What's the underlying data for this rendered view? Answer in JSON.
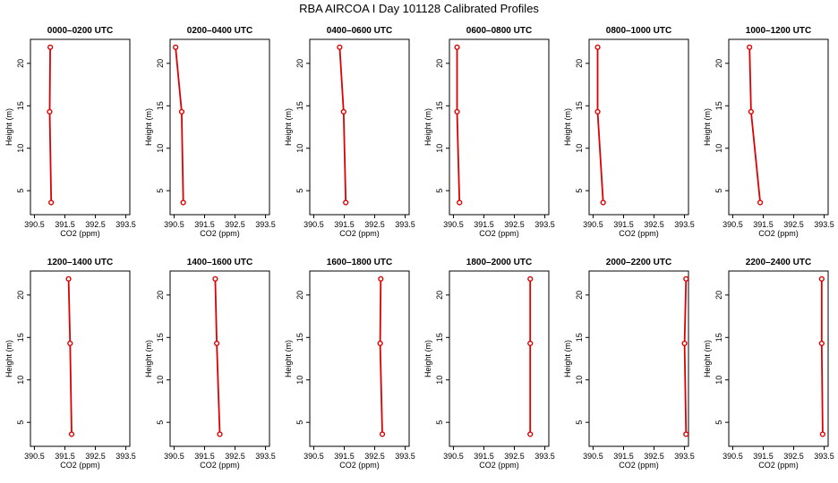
{
  "page": {
    "title": "RBA AIRCOA I  Day 101128  Calibrated Profiles"
  },
  "colors": {
    "profile": "#dd0000",
    "axis": "#000000",
    "background": "#ffffff"
  },
  "chart_data": [
    {
      "type": "line",
      "title": "0000–0200 UTC",
      "xlabel": "CO2 (ppm)",
      "ylabel": "Height (m)",
      "xlim": [
        390.5,
        393.5
      ],
      "ylim": [
        3,
        22
      ],
      "xticks": [
        "390.5",
        "391.5",
        "392.5",
        "393.5"
      ],
      "yticks": [
        "5",
        "10",
        "15",
        "20"
      ],
      "series": [
        {
          "x": [
            391.02,
            391.0,
            391.05
          ],
          "y": [
            21.9,
            14.3,
            3.6
          ]
        }
      ]
    },
    {
      "type": "line",
      "title": "0200–0400 UTC",
      "xlabel": "CO2 (ppm)",
      "ylabel": "Height (m)",
      "xlim": [
        390.5,
        393.5
      ],
      "ylim": [
        3,
        22
      ],
      "xticks": [
        "390.5",
        "391.5",
        "392.5",
        "393.5"
      ],
      "yticks": [
        "5",
        "10",
        "15",
        "20"
      ],
      "series": [
        {
          "x": [
            390.55,
            390.75,
            390.8
          ],
          "y": [
            21.9,
            14.3,
            3.6
          ]
        }
      ]
    },
    {
      "type": "line",
      "title": "0400–0600 UTC",
      "xlabel": "CO2 (ppm)",
      "ylabel": "Height (m)",
      "xlim": [
        390.5,
        393.5
      ],
      "ylim": [
        3,
        22
      ],
      "xticks": [
        "390.5",
        "391.5",
        "392.5",
        "393.5"
      ],
      "yticks": [
        "5",
        "10",
        "15",
        "20"
      ],
      "series": [
        {
          "x": [
            391.35,
            391.48,
            391.55
          ],
          "y": [
            21.9,
            14.3,
            3.6
          ]
        }
      ]
    },
    {
      "type": "line",
      "title": "0600–0800 UTC",
      "xlabel": "CO2 (ppm)",
      "ylabel": "Height (m)",
      "xlim": [
        390.5,
        393.5
      ],
      "ylim": [
        3,
        22
      ],
      "xticks": [
        "390.5",
        "391.5",
        "392.5",
        "393.5"
      ],
      "yticks": [
        "5",
        "10",
        "15",
        "20"
      ],
      "series": [
        {
          "x": [
            390.62,
            390.62,
            390.7
          ],
          "y": [
            21.9,
            14.3,
            3.6
          ]
        }
      ]
    },
    {
      "type": "line",
      "title": "0800–1000 UTC",
      "xlabel": "CO2 (ppm)",
      "ylabel": "Height (m)",
      "xlim": [
        390.5,
        393.5
      ],
      "ylim": [
        3,
        22
      ],
      "xticks": [
        "390.5",
        "391.5",
        "392.5",
        "393.5"
      ],
      "yticks": [
        "5",
        "10",
        "15",
        "20"
      ],
      "series": [
        {
          "x": [
            390.65,
            390.65,
            390.83
          ],
          "y": [
            21.9,
            14.3,
            3.6
          ]
        }
      ]
    },
    {
      "type": "line",
      "title": "1000–1200 UTC",
      "xlabel": "CO2 (ppm)",
      "ylabel": "Height (m)",
      "xlim": [
        390.5,
        393.5
      ],
      "ylim": [
        3,
        22
      ],
      "xticks": [
        "390.5",
        "391.5",
        "392.5",
        "393.5"
      ],
      "yticks": [
        "5",
        "10",
        "15",
        "20"
      ],
      "series": [
        {
          "x": [
            391.05,
            391.1,
            391.4
          ],
          "y": [
            21.9,
            14.3,
            3.6
          ]
        }
      ]
    },
    {
      "type": "line",
      "title": "1200–1400 UTC",
      "xlabel": "CO2 (ppm)",
      "ylabel": "Height (m)",
      "xlim": [
        390.5,
        393.5
      ],
      "ylim": [
        3,
        22
      ],
      "xticks": [
        "390.5",
        "391.5",
        "392.5",
        "393.5"
      ],
      "yticks": [
        "5",
        "10",
        "15",
        "20"
      ],
      "series": [
        {
          "x": [
            391.62,
            391.67,
            391.72
          ],
          "y": [
            21.9,
            14.3,
            3.6
          ]
        }
      ]
    },
    {
      "type": "line",
      "title": "1400–1600 UTC",
      "xlabel": "CO2 (ppm)",
      "ylabel": "Height (m)",
      "xlim": [
        390.5,
        393.5
      ],
      "ylim": [
        3,
        22
      ],
      "xticks": [
        "390.5",
        "391.5",
        "392.5",
        "393.5"
      ],
      "yticks": [
        "5",
        "10",
        "15",
        "20"
      ],
      "series": [
        {
          "x": [
            391.85,
            391.9,
            392.0
          ],
          "y": [
            21.9,
            14.3,
            3.6
          ]
        }
      ]
    },
    {
      "type": "line",
      "title": "1600–1800 UTC",
      "xlabel": "CO2 (ppm)",
      "ylabel": "Height (m)",
      "xlim": [
        390.5,
        393.5
      ],
      "ylim": [
        3,
        22
      ],
      "xticks": [
        "390.5",
        "391.5",
        "392.5",
        "393.5"
      ],
      "yticks": [
        "5",
        "10",
        "15",
        "20"
      ],
      "series": [
        {
          "x": [
            392.7,
            392.68,
            392.75
          ],
          "y": [
            21.9,
            14.3,
            3.6
          ]
        }
      ]
    },
    {
      "type": "line",
      "title": "1800–2000 UTC",
      "xlabel": "CO2 (ppm)",
      "ylabel": "Height (m)",
      "xlim": [
        390.5,
        393.5
      ],
      "ylim": [
        3,
        22
      ],
      "xticks": [
        "390.5",
        "391.5",
        "392.5",
        "393.5"
      ],
      "yticks": [
        "5",
        "10",
        "15",
        "20"
      ],
      "series": [
        {
          "x": [
            393.02,
            393.02,
            393.02
          ],
          "y": [
            21.9,
            14.3,
            3.6
          ]
        }
      ]
    },
    {
      "type": "line",
      "title": "2000–2200 UTC",
      "xlabel": "CO2 (ppm)",
      "ylabel": "Height (m)",
      "xlim": [
        390.5,
        393.5
      ],
      "ylim": [
        3,
        22
      ],
      "xticks": [
        "390.5",
        "391.5",
        "392.5",
        "393.5"
      ],
      "yticks": [
        "5",
        "10",
        "15",
        "20"
      ],
      "series": [
        {
          "x": [
            393.55,
            393.5,
            393.55
          ],
          "y": [
            21.9,
            14.3,
            3.6
          ]
        }
      ]
    },
    {
      "type": "line",
      "title": "2200–2400 UTC",
      "xlabel": "CO2 (ppm)",
      "ylabel": "Height (m)",
      "xlim": [
        390.5,
        393.5
      ],
      "ylim": [
        3,
        22
      ],
      "xticks": [
        "390.5",
        "391.5",
        "392.5",
        "393.5"
      ],
      "yticks": [
        "5",
        "10",
        "15",
        "20"
      ],
      "series": [
        {
          "x": [
            393.42,
            393.42,
            393.45
          ],
          "y": [
            21.9,
            14.3,
            3.6
          ]
        }
      ]
    }
  ]
}
